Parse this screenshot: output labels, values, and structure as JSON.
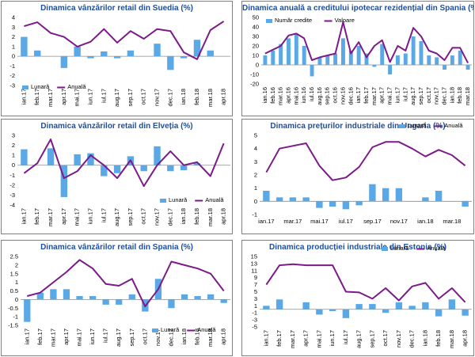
{
  "colors": {
    "bar": "#5aa9e6",
    "line": "#7d1a8a",
    "title": "#1f4e9c",
    "bar_alt": "#4a9fe0"
  },
  "chart_data": [
    {
      "id": "c1",
      "type": "bar+line",
      "title": "Dinamica vânzărilor retail din Suedia (%)",
      "categories": [
        "ian.17",
        "feb.17",
        "mar.17",
        "apr.17",
        "mai.17",
        "iun.17",
        "iul.17",
        "aug.17",
        "sep.17",
        "oct.17",
        "nov.17",
        "dec.17",
        "ian.18",
        "feb.18",
        "mar.18",
        "apr.18"
      ],
      "xlabels": [
        "ian.17",
        "feb.17",
        "mar.17",
        "apr.17",
        "mai.17",
        "iun.17",
        "iul.17",
        "aug.17",
        "sep.17",
        "oct.17",
        "nov.17",
        "dec.17",
        "ian.18",
        "feb.18",
        "mar.18",
        "apr.18"
      ],
      "ylim": [
        -3,
        4
      ],
      "yticks": [
        -3,
        -2,
        -1,
        0,
        1,
        2,
        3,
        4
      ],
      "bar_series": {
        "name": "Lunară",
        "values": [
          2.0,
          0.6,
          0.0,
          -1.2,
          1.0,
          -0.2,
          0.5,
          -0.2,
          0.6,
          0.0,
          1.3,
          -1.4,
          -0.2,
          1.7,
          0.6,
          0.0
        ]
      },
      "line_series": {
        "name": "Anuală",
        "values": [
          3.1,
          3.5,
          2.4,
          2.0,
          1.0,
          1.5,
          2.8,
          1.4,
          2.6,
          1.8,
          2.8,
          2.6,
          0.4,
          -0.3,
          2.7,
          3.6
        ]
      },
      "legend_order": [
        "bar",
        "line"
      ]
    },
    {
      "id": "c2",
      "type": "bar+line",
      "title": "Dinamica anuală a creditului ipotecar rezidențial din Spania (%)",
      "categories": [
        "ian.16",
        "feb.16",
        "mar.16",
        "apr.16",
        "mai.16",
        "iun.16",
        "iul.16",
        "aug.16",
        "sep.16",
        "oct.16",
        "nov.16",
        "dec.16",
        "ian.17",
        "feb.17",
        "mar.17",
        "apr.17",
        "mai.17",
        "iun.17",
        "iul.17",
        "aug.17",
        "sep.17",
        "oct.17",
        "nov.17",
        "dec.17",
        "ian.18",
        "feb.18",
        "mar.18"
      ],
      "xlabels": [
        "ian.16",
        "feb.16",
        "mar.16",
        "apr.16",
        "mai.16",
        "iun.16",
        "iul.16",
        "aug.16",
        "sep.16",
        "oct.16",
        "nov.16",
        "dec.16",
        "ian.17",
        "feb.17",
        "mar.17",
        "apr.17",
        "mai.17",
        "iun.17",
        "iul.17",
        "aug.17",
        "sep.17",
        "oct.17",
        "nov.17",
        "dec.17",
        "ian.18",
        "feb.18",
        "mar.18"
      ],
      "ylim": [
        -20,
        50
      ],
      "yticks": [
        -20,
        -10,
        0,
        10,
        20,
        30,
        40,
        50
      ],
      "bar_series": {
        "name": "Număr credite",
        "values": [
          10,
          15,
          22,
          28,
          33,
          20,
          -12,
          8,
          10,
          12,
          28,
          15,
          20,
          12,
          -2,
          22,
          -10,
          10,
          12,
          30,
          25,
          10,
          8,
          -5,
          10,
          15,
          -5
        ]
      },
      "line_series": {
        "name": "Valoare",
        "values": [
          12,
          16,
          20,
          31,
          33,
          28,
          5,
          8,
          10,
          12,
          45,
          12,
          24,
          8,
          20,
          26,
          3,
          20,
          15,
          39,
          30,
          15,
          12,
          5,
          18,
          18,
          2
        ]
      },
      "legend_order": [
        "bar",
        "line"
      ]
    },
    {
      "id": "c3",
      "type": "bar+line",
      "title": "Dinamica vânzărilor retail din Elveția (%)",
      "categories": [
        "ian.17",
        "feb.17",
        "mar.17",
        "apr.17",
        "mai.17",
        "iun.17",
        "iul.17",
        "aug.17",
        "sep.17",
        "oct.17",
        "nov.17",
        "dec.17",
        "ian.18",
        "feb.18",
        "mar.18",
        "apr.18"
      ],
      "xlabels": [
        "ian.17",
        "feb.17",
        "mar.17",
        "apr.17",
        "mai.17",
        "iun.17",
        "iul.17",
        "aug.17",
        "sep.17",
        "oct.17",
        "nov.17",
        "dec.17",
        "ian.18",
        "feb.18",
        "mar.18",
        "apr.18"
      ],
      "ylim": [
        -4,
        3
      ],
      "yticks": [
        -4,
        -3,
        -2,
        -1,
        0,
        1,
        2,
        3
      ],
      "bar_series": {
        "name": "Lunară",
        "values": [
          1.6,
          0.0,
          1.7,
          -3.2,
          1.1,
          1.2,
          -1.1,
          -0.8,
          0.9,
          -0.6,
          1.9,
          -0.6,
          -0.5,
          0.2,
          0.0,
          0.0
        ]
      },
      "line_series": {
        "name": "Anuală",
        "values": [
          -0.8,
          0.2,
          2.6,
          -1.3,
          -0.6,
          1.0,
          0.0,
          -1.3,
          0.5,
          -2.1,
          0.0,
          1.4,
          0.0,
          0.3,
          -1.1,
          2.2
        ]
      },
      "legend_order": [
        "bar",
        "line"
      ]
    },
    {
      "id": "c4",
      "type": "bar+line",
      "title": "Dinamica prețurilor industriale din Ungaria (%)",
      "categories": [
        "ian.17",
        "feb.17",
        "mar.17",
        "apr.17",
        "mai.17",
        "iun.17",
        "iul.17",
        "aug.17",
        "sep.17",
        "oct.17",
        "nov.17",
        "dec.17",
        "ian.18",
        "feb.18",
        "mar.18",
        "apr.18"
      ],
      "xlabels": [
        "ian.17",
        "",
        "mar.17",
        "",
        "mai.17",
        "",
        "iul.17",
        "",
        "sep.17",
        "",
        "nov.17",
        "",
        "ian.18",
        "",
        "mar.18",
        ""
      ],
      "ylim": [
        -1,
        5
      ],
      "yticks": [
        -1,
        0,
        1,
        2,
        3,
        4,
        5
      ],
      "bar_series": {
        "name": "Lunară",
        "values": [
          0.8,
          0.3,
          0.3,
          0.3,
          -0.5,
          -0.4,
          -0.6,
          -0.3,
          1.3,
          1.0,
          1.0,
          0.0,
          0.3,
          0.8,
          0.0,
          -0.4
        ]
      },
      "line_series": {
        "name": "Anuală",
        "values": [
          2.2,
          4.0,
          4.2,
          4.4,
          2.7,
          1.6,
          1.8,
          2.6,
          4.1,
          4.5,
          4.5,
          4.0,
          3.4,
          3.9,
          3.5,
          2.7
        ]
      },
      "legend_order": [
        "bar",
        "line"
      ]
    },
    {
      "id": "c5",
      "type": "bar+line",
      "title": "Dinamica vânzărilor retail din Spania (%)",
      "categories": [
        "ian.17",
        "feb.17",
        "mar.17",
        "apr.17",
        "mai.17",
        "iun.17",
        "iul.17",
        "aug.17",
        "sep.17",
        "oct.17",
        "nov.17",
        "dec.17",
        "ian.18",
        "feb.18",
        "mar.18",
        "apr.18"
      ],
      "xlabels": [
        "ian.17",
        "feb.17",
        "mar.17",
        "apr.17",
        "mai.17",
        "iun.17",
        "iul.17",
        "aug.17",
        "sep.17",
        "oct.17",
        "nov.17",
        "dec.17",
        "ian.18",
        "feb.18",
        "mar.18",
        "apr.18"
      ],
      "ylim": [
        -1.5,
        2.5
      ],
      "yticks": [
        -1.5,
        -1,
        -0.5,
        0,
        0.5,
        1,
        1.5,
        2,
        2.5
      ],
      "bar_series": {
        "name": "Lunară",
        "values": [
          -1.3,
          0.4,
          0.6,
          0.6,
          0.2,
          0.2,
          -0.3,
          -0.3,
          0.3,
          -0.7,
          1.2,
          -0.5,
          0.3,
          0.2,
          0.3,
          -0.2
        ]
      },
      "line_series": {
        "name": "Anuală",
        "values": [
          0.2,
          0.4,
          1.0,
          1.6,
          2.3,
          1.8,
          0.9,
          0.8,
          1.2,
          -0.4,
          0.6,
          2.2,
          2.0,
          1.8,
          1.5,
          0.5
        ]
      },
      "legend_order": [
        "bar",
        "line"
      ]
    },
    {
      "id": "c6",
      "type": "bar+line",
      "title": "Dinamica producției industriale din Estonia (%)",
      "categories": [
        "ian.17",
        "feb.17",
        "mar.17",
        "apr.17",
        "mai.17",
        "iun.17",
        "iul.17",
        "aug.17",
        "sep.17",
        "oct.17",
        "nov.17",
        "dec.17",
        "ian.18",
        "feb.18",
        "mar.18",
        "apr.18"
      ],
      "xlabels": [
        "ian.17",
        "feb.17",
        "mar.17",
        "apr.17",
        "mai.17",
        "iun.17",
        "iul.17",
        "aug.17",
        "sep.17",
        "oct.17",
        "nov.17",
        "dec.17",
        "ian.18",
        "feb.18",
        "mar.18",
        "apr.18"
      ],
      "ylim": [
        -5,
        15
      ],
      "yticks": [
        -5,
        -3,
        -1,
        1,
        3,
        5,
        7,
        9,
        11,
        13,
        15
      ],
      "bar_series": {
        "name": "Lunară",
        "values": [
          1.0,
          2.8,
          0.0,
          2.0,
          -1.5,
          -0.5,
          -2.5,
          1.5,
          1.5,
          -1.0,
          2.0,
          1.0,
          2.0,
          -2.0,
          2.8,
          -1.8
        ]
      },
      "line_series": {
        "name": "Anuală",
        "values": [
          7.0,
          12.5,
          12.8,
          12.5,
          12.5,
          12.5,
          5.0,
          4.8,
          3.0,
          6.0,
          2.5,
          6.5,
          7.5,
          3.0,
          6.0,
          2.0
        ]
      },
      "legend_order": [
        "bar",
        "line"
      ]
    }
  ]
}
